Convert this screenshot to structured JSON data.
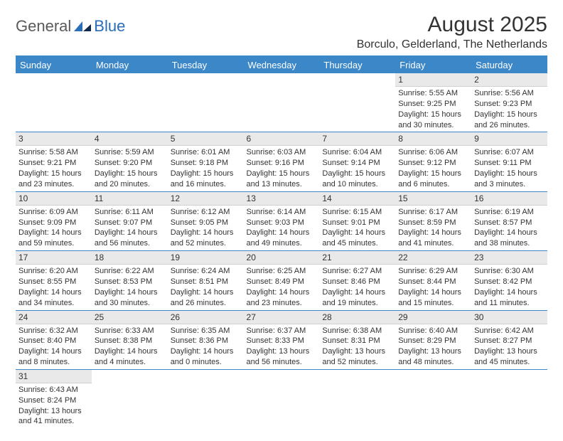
{
  "logo": {
    "general": "General",
    "blue": "Blue"
  },
  "title": "August 2025",
  "location": "Borculo, Gelderland, The Netherlands",
  "colors": {
    "header_bg": "#3b87c8",
    "header_text": "#ffffff",
    "daynum_bg": "#e9e9e9",
    "border": "#3b87c8",
    "logo_gray": "#5a5a5a",
    "logo_blue": "#2a6db8",
    "text": "#333333"
  },
  "weekdays": [
    "Sunday",
    "Monday",
    "Tuesday",
    "Wednesday",
    "Thursday",
    "Friday",
    "Saturday"
  ],
  "weeks": [
    [
      {
        "blank": true
      },
      {
        "blank": true
      },
      {
        "blank": true
      },
      {
        "blank": true
      },
      {
        "blank": true
      },
      {
        "day": "1",
        "sunrise": "Sunrise: 5:55 AM",
        "sunset": "Sunset: 9:25 PM",
        "daylight": "Daylight: 15 hours and 30 minutes."
      },
      {
        "day": "2",
        "sunrise": "Sunrise: 5:56 AM",
        "sunset": "Sunset: 9:23 PM",
        "daylight": "Daylight: 15 hours and 26 minutes."
      }
    ],
    [
      {
        "day": "3",
        "sunrise": "Sunrise: 5:58 AM",
        "sunset": "Sunset: 9:21 PM",
        "daylight": "Daylight: 15 hours and 23 minutes."
      },
      {
        "day": "4",
        "sunrise": "Sunrise: 5:59 AM",
        "sunset": "Sunset: 9:20 PM",
        "daylight": "Daylight: 15 hours and 20 minutes."
      },
      {
        "day": "5",
        "sunrise": "Sunrise: 6:01 AM",
        "sunset": "Sunset: 9:18 PM",
        "daylight": "Daylight: 15 hours and 16 minutes."
      },
      {
        "day": "6",
        "sunrise": "Sunrise: 6:03 AM",
        "sunset": "Sunset: 9:16 PM",
        "daylight": "Daylight: 15 hours and 13 minutes."
      },
      {
        "day": "7",
        "sunrise": "Sunrise: 6:04 AM",
        "sunset": "Sunset: 9:14 PM",
        "daylight": "Daylight: 15 hours and 10 minutes."
      },
      {
        "day": "8",
        "sunrise": "Sunrise: 6:06 AM",
        "sunset": "Sunset: 9:12 PM",
        "daylight": "Daylight: 15 hours and 6 minutes."
      },
      {
        "day": "9",
        "sunrise": "Sunrise: 6:07 AM",
        "sunset": "Sunset: 9:11 PM",
        "daylight": "Daylight: 15 hours and 3 minutes."
      }
    ],
    [
      {
        "day": "10",
        "sunrise": "Sunrise: 6:09 AM",
        "sunset": "Sunset: 9:09 PM",
        "daylight": "Daylight: 14 hours and 59 minutes."
      },
      {
        "day": "11",
        "sunrise": "Sunrise: 6:11 AM",
        "sunset": "Sunset: 9:07 PM",
        "daylight": "Daylight: 14 hours and 56 minutes."
      },
      {
        "day": "12",
        "sunrise": "Sunrise: 6:12 AM",
        "sunset": "Sunset: 9:05 PM",
        "daylight": "Daylight: 14 hours and 52 minutes."
      },
      {
        "day": "13",
        "sunrise": "Sunrise: 6:14 AM",
        "sunset": "Sunset: 9:03 PM",
        "daylight": "Daylight: 14 hours and 49 minutes."
      },
      {
        "day": "14",
        "sunrise": "Sunrise: 6:15 AM",
        "sunset": "Sunset: 9:01 PM",
        "daylight": "Daylight: 14 hours and 45 minutes."
      },
      {
        "day": "15",
        "sunrise": "Sunrise: 6:17 AM",
        "sunset": "Sunset: 8:59 PM",
        "daylight": "Daylight: 14 hours and 41 minutes."
      },
      {
        "day": "16",
        "sunrise": "Sunrise: 6:19 AM",
        "sunset": "Sunset: 8:57 PM",
        "daylight": "Daylight: 14 hours and 38 minutes."
      }
    ],
    [
      {
        "day": "17",
        "sunrise": "Sunrise: 6:20 AM",
        "sunset": "Sunset: 8:55 PM",
        "daylight": "Daylight: 14 hours and 34 minutes."
      },
      {
        "day": "18",
        "sunrise": "Sunrise: 6:22 AM",
        "sunset": "Sunset: 8:53 PM",
        "daylight": "Daylight: 14 hours and 30 minutes."
      },
      {
        "day": "19",
        "sunrise": "Sunrise: 6:24 AM",
        "sunset": "Sunset: 8:51 PM",
        "daylight": "Daylight: 14 hours and 26 minutes."
      },
      {
        "day": "20",
        "sunrise": "Sunrise: 6:25 AM",
        "sunset": "Sunset: 8:49 PM",
        "daylight": "Daylight: 14 hours and 23 minutes."
      },
      {
        "day": "21",
        "sunrise": "Sunrise: 6:27 AM",
        "sunset": "Sunset: 8:46 PM",
        "daylight": "Daylight: 14 hours and 19 minutes."
      },
      {
        "day": "22",
        "sunrise": "Sunrise: 6:29 AM",
        "sunset": "Sunset: 8:44 PM",
        "daylight": "Daylight: 14 hours and 15 minutes."
      },
      {
        "day": "23",
        "sunrise": "Sunrise: 6:30 AM",
        "sunset": "Sunset: 8:42 PM",
        "daylight": "Daylight: 14 hours and 11 minutes."
      }
    ],
    [
      {
        "day": "24",
        "sunrise": "Sunrise: 6:32 AM",
        "sunset": "Sunset: 8:40 PM",
        "daylight": "Daylight: 14 hours and 8 minutes."
      },
      {
        "day": "25",
        "sunrise": "Sunrise: 6:33 AM",
        "sunset": "Sunset: 8:38 PM",
        "daylight": "Daylight: 14 hours and 4 minutes."
      },
      {
        "day": "26",
        "sunrise": "Sunrise: 6:35 AM",
        "sunset": "Sunset: 8:36 PM",
        "daylight": "Daylight: 14 hours and 0 minutes."
      },
      {
        "day": "27",
        "sunrise": "Sunrise: 6:37 AM",
        "sunset": "Sunset: 8:33 PM",
        "daylight": "Daylight: 13 hours and 56 minutes."
      },
      {
        "day": "28",
        "sunrise": "Sunrise: 6:38 AM",
        "sunset": "Sunset: 8:31 PM",
        "daylight": "Daylight: 13 hours and 52 minutes."
      },
      {
        "day": "29",
        "sunrise": "Sunrise: 6:40 AM",
        "sunset": "Sunset: 8:29 PM",
        "daylight": "Daylight: 13 hours and 48 minutes."
      },
      {
        "day": "30",
        "sunrise": "Sunrise: 6:42 AM",
        "sunset": "Sunset: 8:27 PM",
        "daylight": "Daylight: 13 hours and 45 minutes."
      }
    ],
    [
      {
        "day": "31",
        "sunrise": "Sunrise: 6:43 AM",
        "sunset": "Sunset: 8:24 PM",
        "daylight": "Daylight: 13 hours and 41 minutes."
      },
      {
        "blank": true
      },
      {
        "blank": true
      },
      {
        "blank": true
      },
      {
        "blank": true
      },
      {
        "blank": true
      },
      {
        "blank": true
      }
    ]
  ]
}
